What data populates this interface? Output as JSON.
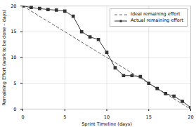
{
  "chart_data": {
    "type": "line",
    "xlabel": "Sprint Timeline (days)",
    "ylabel": "Remaining Effort (work to be done – days)",
    "xlim": [
      0,
      20
    ],
    "ylim": [
      0,
      20
    ],
    "xticks": [
      0,
      5,
      10,
      15,
      20
    ],
    "yticks": [
      0,
      5,
      10,
      15,
      20
    ],
    "grid": true,
    "legend": "upper right",
    "series": [
      {
        "name": "Ideal remaining effort",
        "color": "#666666",
        "line_style": "dashed",
        "x": [
          0,
          20
        ],
        "values": [
          20,
          0
        ]
      },
      {
        "name": "Actual remaining effort",
        "color": "#333333",
        "line_style": "solid",
        "marker": "square",
        "x": [
          0,
          1,
          2,
          3,
          4,
          5,
          6,
          7,
          8,
          9,
          10,
          11,
          12,
          13,
          14,
          15,
          16,
          17,
          18,
          19,
          20
        ],
        "values": [
          20,
          19.7,
          19.5,
          19.3,
          19.2,
          19.0,
          18.0,
          15.0,
          14.0,
          13.5,
          11.0,
          8.0,
          6.5,
          6.5,
          6.3,
          5.0,
          4.0,
          3.0,
          2.5,
          1.5,
          0.3
        ]
      }
    ]
  }
}
